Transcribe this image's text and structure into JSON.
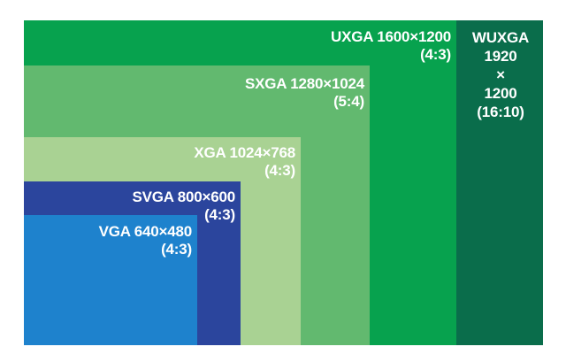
{
  "colors": {
    "wuxga": "#0a6d4b",
    "uxga": "#07a24e",
    "sxga": "#62b96f",
    "xga": "#a9d293",
    "svga": "#2b459d",
    "vga": "#1e82cd"
  },
  "resolutions": [
    {
      "id": "wuxga",
      "line1": "WUXGA",
      "line2": "1920",
      "line3": "×",
      "line4": "1200",
      "line5": "(16:10)"
    },
    {
      "id": "uxga",
      "line1": "UXGA 1600×1200",
      "line2": "(4:3)"
    },
    {
      "id": "sxga",
      "line1": "SXGA 1280×1024",
      "line2": "(5:4)"
    },
    {
      "id": "xga",
      "line1": "XGA 1024×768",
      "line2": "(4:3)"
    },
    {
      "id": "svga",
      "line1": "SVGA 800×600",
      "line2": "(4:3)"
    },
    {
      "id": "vga",
      "line1": "VGA 640×480",
      "line2": "(4:3)"
    }
  ]
}
